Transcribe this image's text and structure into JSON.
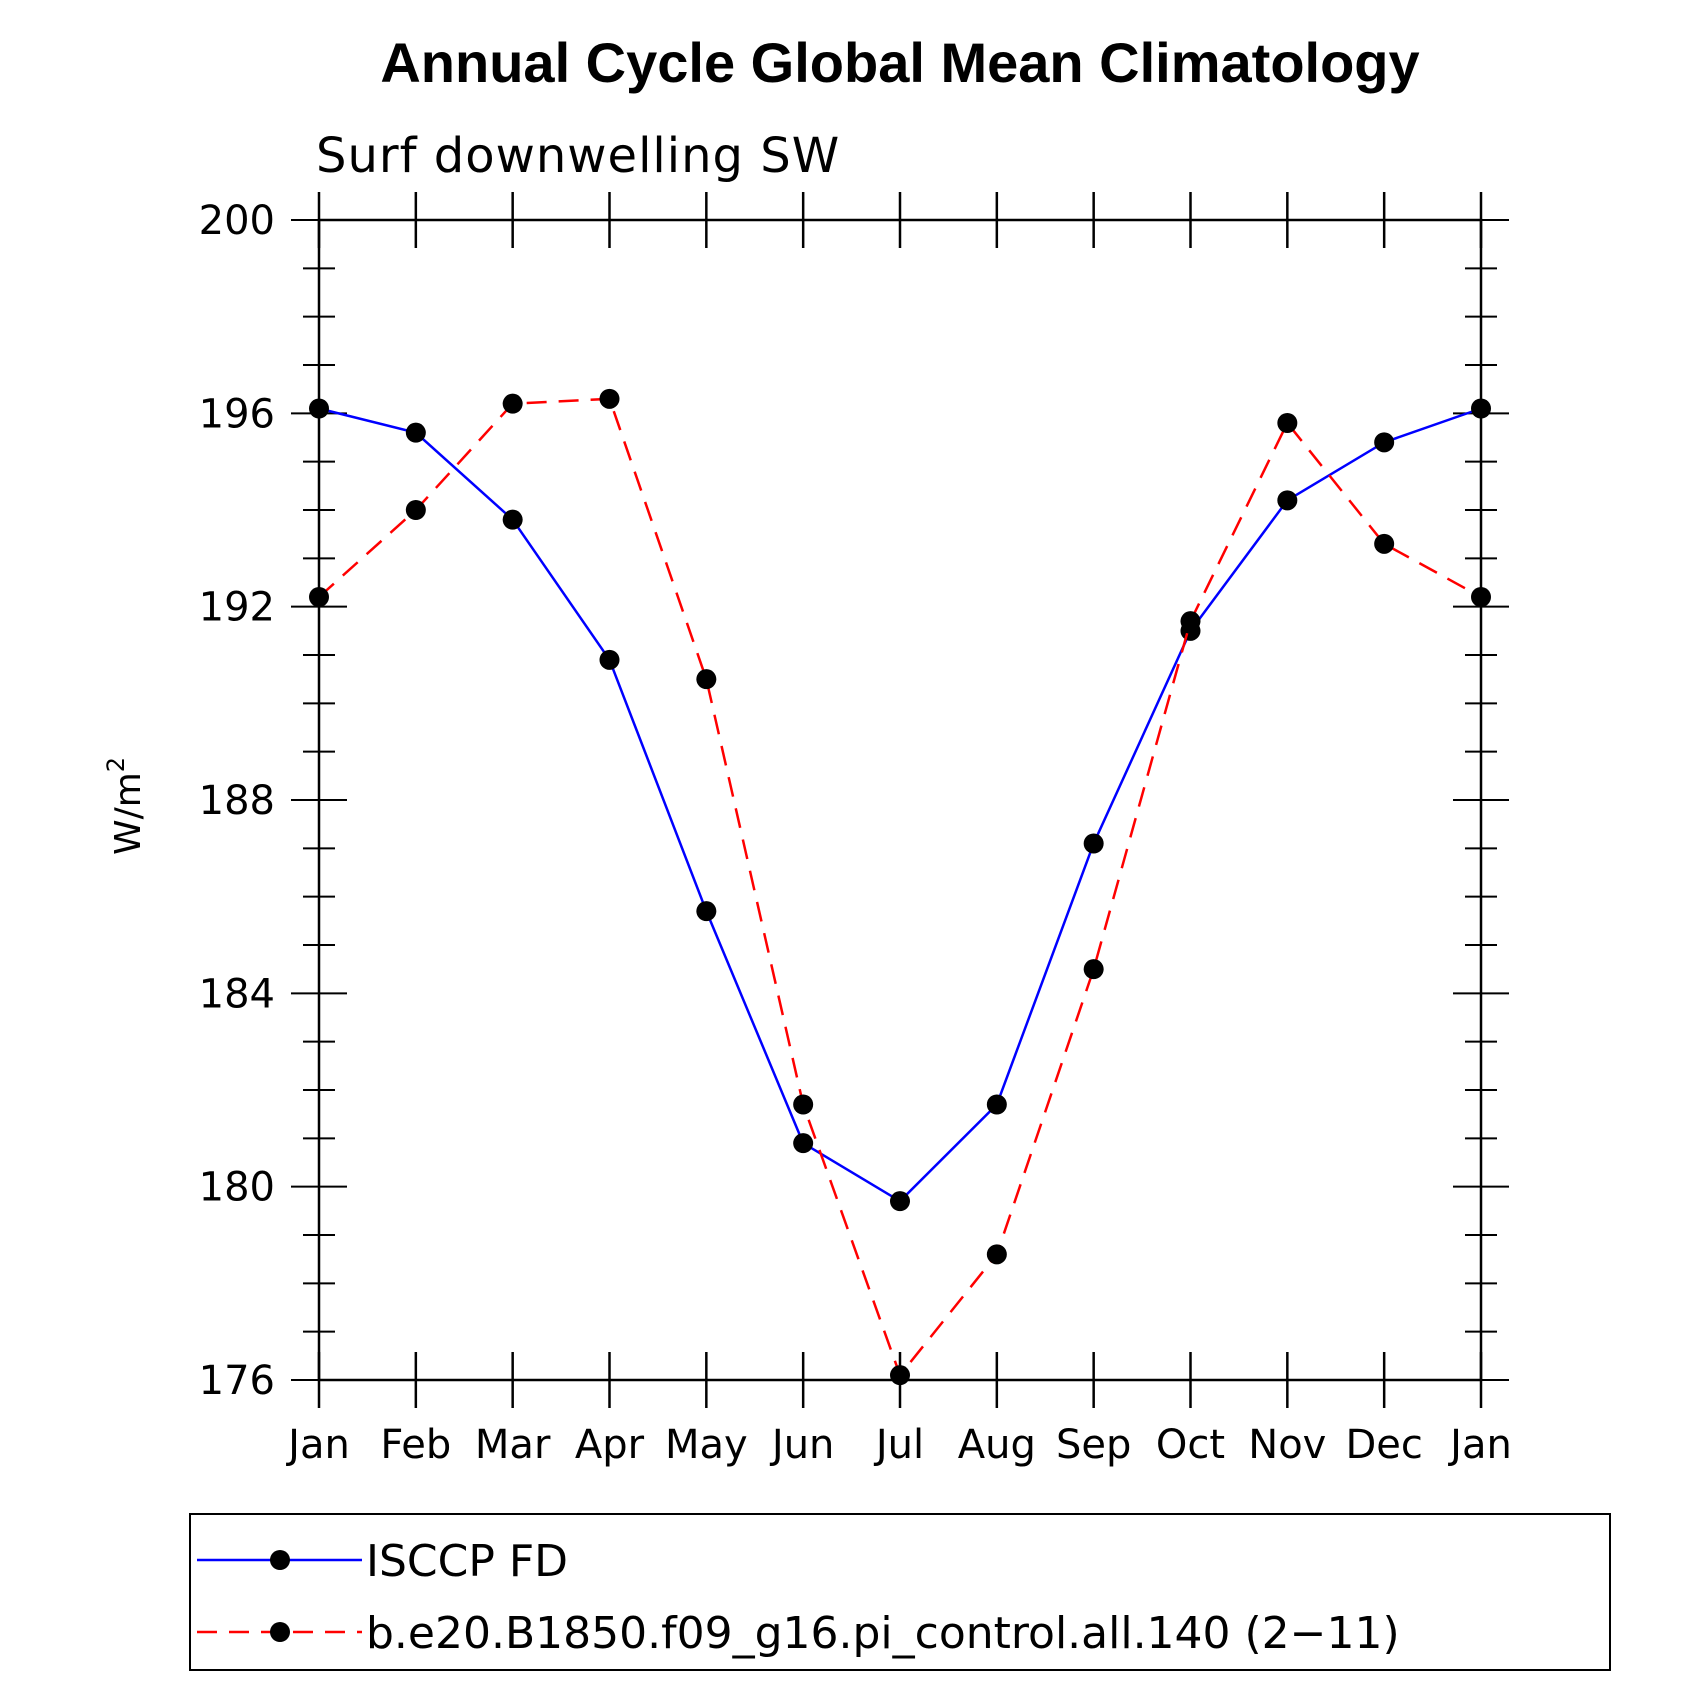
{
  "chart_data": {
    "type": "line",
    "title": "Annual Cycle Global Mean Climatology",
    "subtitle": "Surf downwelling SW",
    "ylabel": "W/m",
    "ylabel_superscript": "2",
    "xlabel": "",
    "categories": [
      "Jan",
      "Feb",
      "Mar",
      "Apr",
      "May",
      "Jun",
      "Jul",
      "Aug",
      "Sep",
      "Oct",
      "Nov",
      "Dec",
      "Jan"
    ],
    "ylim": [
      176,
      200
    ],
    "yticks": [
      176,
      180,
      184,
      188,
      192,
      196,
      200
    ],
    "ytick_labels": [
      "176",
      "180",
      "184",
      "188",
      "192",
      "196",
      "200"
    ],
    "grid": false,
    "legend_position": "bottom",
    "series": [
      {
        "name": "ISCCP FD",
        "color": "#0000ff",
        "dash": "solid",
        "marker": "filled-circle",
        "values": [
          196.1,
          195.6,
          193.8,
          190.9,
          185.7,
          180.9,
          179.7,
          181.7,
          187.1,
          191.5,
          194.2,
          195.4,
          196.1
        ]
      },
      {
        "name": "b.e20.B1850.f09_g16.pi_control.all.140 (2−11)",
        "color": "#ff0000",
        "dash": "dashed",
        "marker": "filled-circle",
        "values": [
          192.2,
          194.0,
          196.2,
          196.3,
          190.5,
          181.7,
          176.1,
          178.6,
          184.5,
          191.7,
          195.8,
          193.3,
          192.2
        ]
      }
    ]
  }
}
